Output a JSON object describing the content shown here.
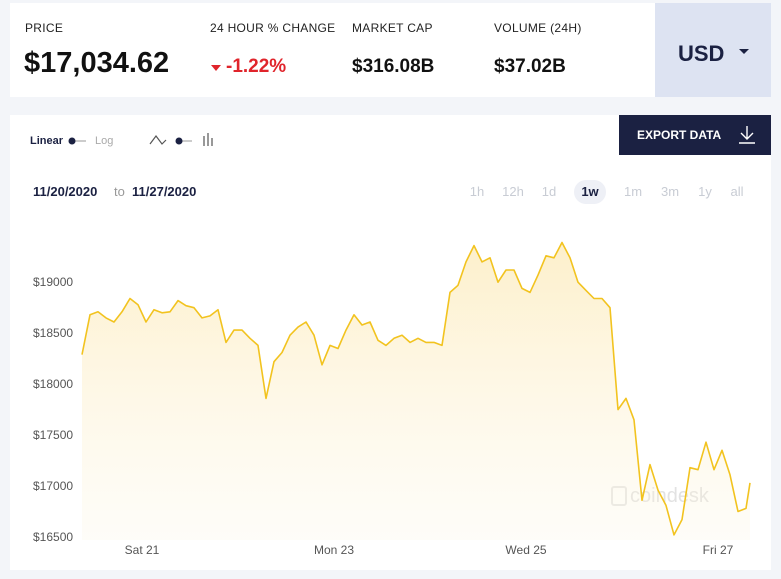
{
  "header": {
    "stats": [
      {
        "label": "PRICE",
        "value": "$17,034.62"
      },
      {
        "label": "24 HOUR % CHANGE",
        "value": "-1.22%"
      },
      {
        "label": "MARKET CAP",
        "value": "$316.08B"
      },
      {
        "label": "VOLUME (24H)",
        "value": "$37.02B"
      }
    ],
    "currency": "USD"
  },
  "controls": {
    "scale_options": [
      "Linear",
      "Log"
    ],
    "export": "EXPORT DATA",
    "date_from": "11/20/2020",
    "date_sep": "to",
    "date_to": "11/27/2020",
    "ranges": [
      "1h",
      "12h",
      "1d",
      "1w",
      "1m",
      "3m",
      "1y",
      "all"
    ],
    "active_range": "1w"
  },
  "chart_data": {
    "type": "line",
    "watermark": "coindesk",
    "color": "#f2c31f",
    "x": [
      -15,
      -13,
      -11,
      -9,
      -7,
      -5,
      -3,
      -1,
      1,
      3,
      5,
      7,
      9,
      11,
      13,
      15,
      17,
      19,
      21,
      23,
      25,
      27,
      29,
      31,
      33,
      35,
      37,
      39,
      41,
      43,
      45,
      47,
      49,
      51,
      53,
      55,
      57,
      59,
      61,
      63,
      65,
      67,
      69,
      71,
      73,
      75,
      77,
      79,
      81,
      83,
      85,
      87,
      89,
      91,
      93,
      95,
      97,
      99,
      101,
      103,
      105,
      107,
      109,
      111,
      113,
      115,
      117,
      119,
      121,
      123,
      125,
      127,
      129,
      131,
      133,
      135,
      137,
      139,
      141,
      143,
      145,
      147,
      149,
      151,
      152
    ],
    "values": [
      18290,
      18680,
      18710,
      18650,
      18610,
      18710,
      18840,
      18780,
      18610,
      18730,
      18700,
      18710,
      18820,
      18770,
      18750,
      18650,
      18670,
      18730,
      18410,
      18530,
      18530,
      18450,
      18380,
      17860,
      18220,
      18310,
      18480,
      18560,
      18610,
      18480,
      18190,
      18380,
      18350,
      18530,
      18680,
      18580,
      18610,
      18430,
      18380,
      18450,
      18480,
      18410,
      18450,
      18410,
      18410,
      18380,
      18900,
      18970,
      19200,
      19360,
      19200,
      19240,
      19000,
      19120,
      19120,
      18940,
      18900,
      19070,
      19260,
      19240,
      19390,
      19240,
      19000,
      18920,
      18840,
      18840,
      18750,
      17750,
      17860,
      17650,
      16860,
      17210,
      16960,
      16810,
      16520,
      16670,
      17180,
      17160,
      17430,
      17160,
      17350,
      17110,
      16750,
      16780,
      17030
    ],
    "xlim": [
      -15,
      152
    ],
    "xticks": [
      {
        "value": 0,
        "label": "Sat 21"
      },
      {
        "value": 48,
        "label": "Mon 23"
      },
      {
        "value": 96,
        "label": "Wed 25"
      },
      {
        "value": 144,
        "label": "Fri 27"
      }
    ],
    "ylim": [
      16470,
      19660
    ],
    "yticks": [
      {
        "value": 16500,
        "label": "$16500"
      },
      {
        "value": 17000,
        "label": "$17000"
      },
      {
        "value": 17500,
        "label": "$17500"
      },
      {
        "value": 18000,
        "label": "$18000"
      },
      {
        "value": 18500,
        "label": "$18500"
      },
      {
        "value": 19000,
        "label": "$19000"
      }
    ],
    "grid": false
  }
}
